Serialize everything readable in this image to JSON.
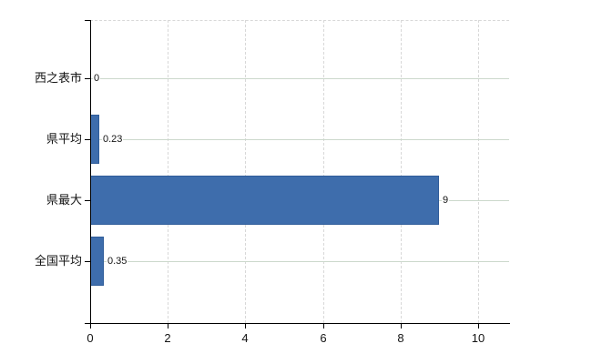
{
  "chart_data": {
    "type": "bar",
    "orientation": "horizontal",
    "title": "",
    "xlabel": "",
    "ylabel": "",
    "categories": [
      "西之表市",
      "県平均",
      "県最大",
      "全国平均"
    ],
    "values": [
      0,
      0.23,
      9,
      0.35
    ],
    "value_labels": [
      "0",
      "0.23",
      "9",
      "0.35"
    ],
    "xticks": [
      0,
      2,
      4,
      6,
      8,
      10
    ],
    "xtick_labels": [
      "0",
      "2",
      "4",
      "6",
      "8",
      "10"
    ],
    "xlim": [
      0,
      10.8
    ],
    "grid": {
      "horizontal": true,
      "vertical": true,
      "vertical_style": "dashed",
      "horizontal_style": "solid"
    },
    "legend": "none"
  },
  "colors": {
    "background": "#ffffff",
    "bar_fill": "#3e6dac",
    "bar_border": "#2f5c99",
    "axis": "#000000",
    "h_grid": "#ccd8cc",
    "v_grid": "#d8d8d8",
    "text": "#141414"
  }
}
